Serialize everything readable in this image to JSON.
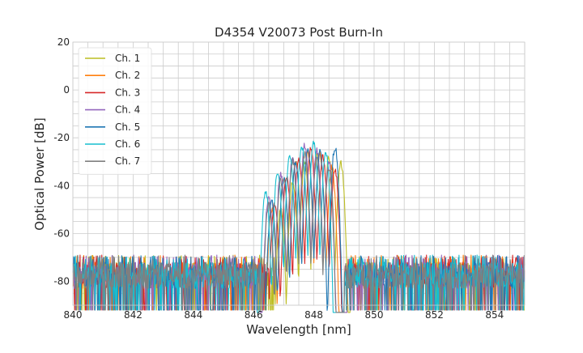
{
  "chart_data": {
    "type": "line",
    "title": "D4354 V20073 Post Burn-In",
    "xlabel": "Wavelength [nm]",
    "ylabel": "Optical Power [dB]",
    "xlim": [
      840,
      855
    ],
    "ylim": [
      -90,
      20
    ],
    "xticks": [
      840,
      842,
      844,
      846,
      848,
      850,
      852,
      854
    ],
    "yticks": [
      -80,
      -60,
      -40,
      -20,
      0,
      20
    ],
    "grid": true,
    "legend_position": "top-left",
    "noise_floor_db": -80,
    "series": [
      {
        "name": "Ch. 1",
        "color": "#bcbd22",
        "passband_nm": [
          846.7,
          849.2
        ],
        "peaks_nm": [
          846.9,
          847.3,
          847.7,
          848.1,
          848.5,
          848.9
        ],
        "peak_db": [
          -50,
          -38,
          -30,
          -27,
          -28,
          -31
        ]
      },
      {
        "name": "Ch. 2",
        "color": "#ff7f0e",
        "passband_nm": [
          846.4,
          849.1
        ],
        "peaks_nm": [
          846.6,
          847.0,
          847.4,
          847.8,
          848.2,
          848.6
        ],
        "peak_db": [
          -50,
          -37,
          -30,
          -26,
          -27,
          -32
        ]
      },
      {
        "name": "Ch. 3",
        "color": "#d62728",
        "passband_nm": [
          846.5,
          849.0
        ],
        "peaks_nm": [
          846.7,
          847.1,
          847.5,
          847.9,
          848.3,
          848.7
        ],
        "peak_db": [
          -48,
          -36,
          -29,
          -25,
          -28,
          -33
        ]
      },
      {
        "name": "Ch. 4",
        "color": "#9467bd",
        "passband_nm": [
          846.2,
          849.1
        ],
        "peaks_nm": [
          846.5,
          846.9,
          847.3,
          847.7,
          848.1,
          848.5
        ],
        "peak_db": [
          -45,
          -35,
          -28,
          -23,
          -25,
          -30
        ]
      },
      {
        "name": "Ch. 5",
        "color": "#1f77b4",
        "passband_nm": [
          846.4,
          849.0
        ],
        "peaks_nm": [
          846.6,
          847.0,
          847.4,
          847.8,
          848.2,
          848.7
        ],
        "peak_db": [
          -47,
          -37,
          -30,
          -25,
          -26,
          -24
        ]
      },
      {
        "name": "Ch. 6",
        "color": "#17becf",
        "passband_nm": [
          846.1,
          849.0
        ],
        "peaks_nm": [
          846.4,
          846.8,
          847.2,
          847.6,
          848.0,
          848.4
        ],
        "peak_db": [
          -42,
          -34,
          -27,
          -24,
          -22,
          -26
        ]
      },
      {
        "name": "Ch. 7",
        "color": "#7f7f7f",
        "passband_nm": [
          846.3,
          849.0
        ],
        "peaks_nm": [
          846.5,
          846.9,
          847.3,
          847.7,
          848.1,
          848.5
        ],
        "peak_db": [
          -48,
          -38,
          -30,
          -27,
          -29,
          -33
        ]
      }
    ]
  }
}
